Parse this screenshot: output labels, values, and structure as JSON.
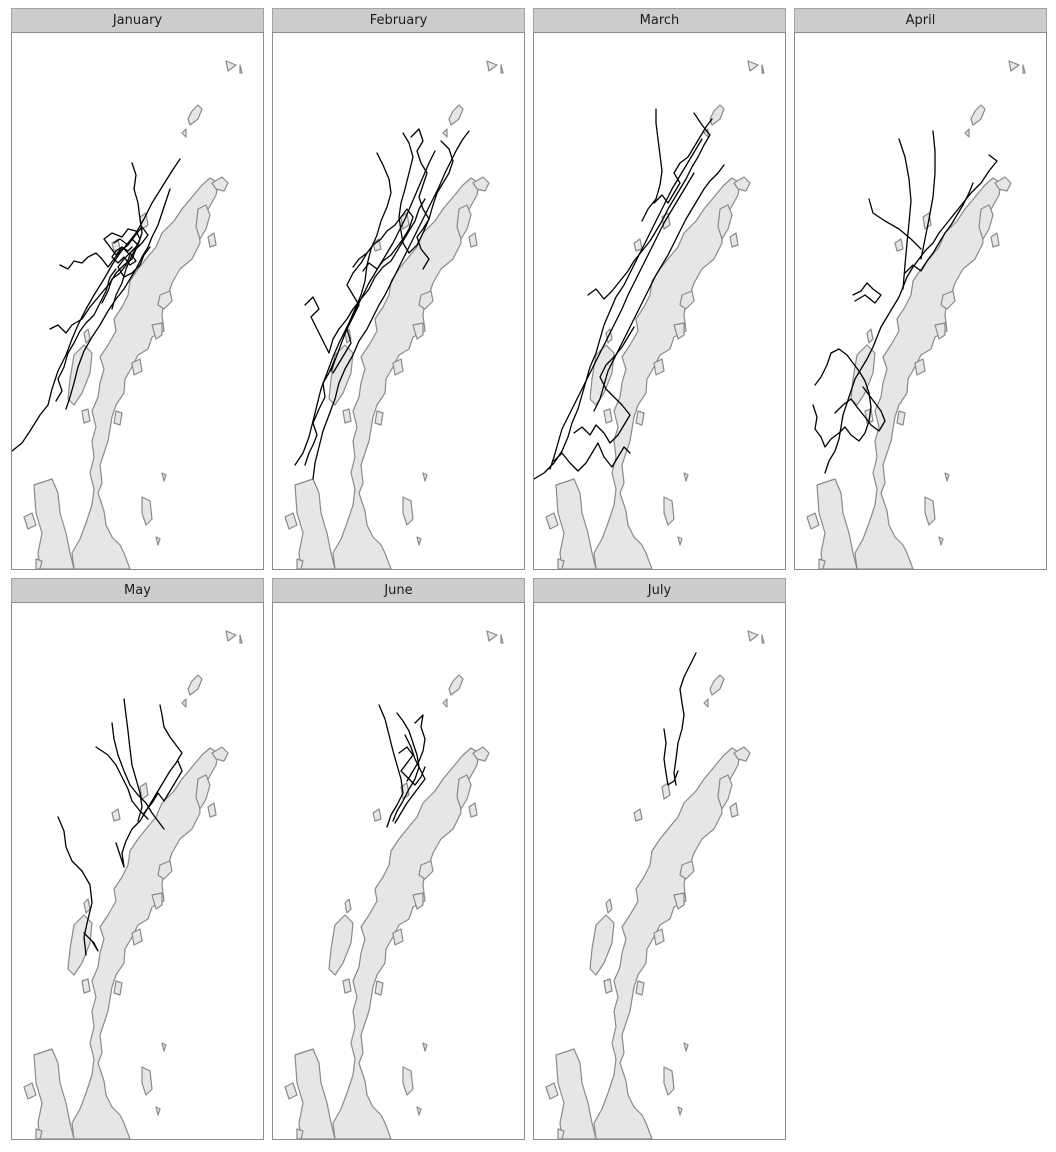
{
  "months": [
    {
      "label": "January"
    },
    {
      "label": "February"
    },
    {
      "label": "March"
    },
    {
      "label": "April"
    },
    {
      "label": "May"
    },
    {
      "label": "June"
    },
    {
      "label": "July"
    }
  ],
  "colors": {
    "land": "#e6e6e6",
    "coast": "#8a8a8a",
    "track": "#000000",
    "strip": "#cccccc"
  }
}
